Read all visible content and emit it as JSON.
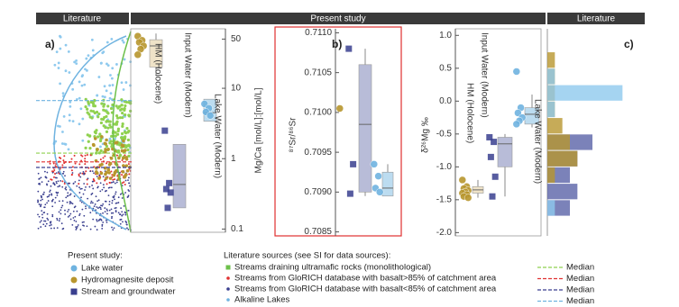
{
  "header": {
    "left": "Literature",
    "middle": "Present study",
    "right": "Literature"
  },
  "chart_data": [
    {
      "type": "box",
      "panel_label": "a)",
      "y_label": "Mg/Ca [mol/L]:[mol/L]",
      "log_y": true,
      "ylim": [
        0.09,
        70
      ],
      "yticks": [
        0.1,
        1,
        10,
        50
      ],
      "series": [
        {
          "name": "HM (Holocene)",
          "color": "#b8962e",
          "box_color": "#efe3c8",
          "marker": "circle",
          "values": [
            55,
            48,
            45,
            40,
            36,
            30
          ],
          "box": {
            "whislo": 15,
            "q1": 20,
            "med": 40,
            "q3": 49,
            "whishi": 60
          }
        },
        {
          "name": "Input Water (Modern)",
          "color": "#3a3f8f",
          "box_color": "#b8bcd8",
          "marker": "square",
          "values": [
            2.5,
            0.45,
            0.37,
            0.33,
            0.2
          ],
          "box": {
            "whislo": 0.2,
            "q1": 0.2,
            "med": 0.43,
            "q3": 1.6,
            "whishi": 1.6
          }
        },
        {
          "name": "Lake Water (Modern)",
          "color": "#6fb3e0",
          "box_color": "#bcdcf0",
          "marker": "circle",
          "values": [
            6,
            5.2,
            4.6,
            4.1
          ],
          "box": {
            "whislo": 3.4,
            "q1": 3.4,
            "med": 4.5,
            "q3": 7,
            "whishi": 7
          }
        }
      ],
      "medians": [
        {
          "color": "#8fd14f",
          "value": 1.2
        },
        {
          "color": "#e03030",
          "value": 0.9
        },
        {
          "color": "#3a3f8f",
          "value": 0.75
        },
        {
          "color": "#6fb3e0",
          "value": 6.7
        }
      ]
    },
    {
      "type": "box",
      "panel_label": "b)",
      "y_label": "⁸⁷Sr/⁸⁶Sr",
      "ylim": [
        0.70845,
        0.71105
      ],
      "yticks": [
        {
          "value": 0.711,
          "label": "0.7110"
        },
        0.7105,
        {
          "value": 0.71,
          "label": "0.7100"
        },
        0.7095,
        {
          "value": 0.709,
          "label": "0.7090"
        },
        0.7085
      ],
      "series": [
        {
          "color": "#b8962e",
          "marker": "circle",
          "values": [
            0.71005
          ]
        },
        {
          "color": "#3a3f8f",
          "box_color": "#b8bcd8",
          "marker": "square",
          "values": [
            0.7108,
            0.70935,
            0.70898
          ],
          "box": {
            "whislo": 0.70895,
            "q1": 0.709,
            "med": 0.70985,
            "q3": 0.7106,
            "whishi": 0.7108
          }
        },
        {
          "color": "#6fb3e0",
          "box_color": "#bcdcf0",
          "marker": "circle",
          "values": [
            0.70935,
            0.7092,
            0.70905,
            0.709
          ],
          "box": {
            "whislo": 0.70895,
            "q1": 0.70895,
            "med": 0.70905,
            "q3": 0.70925,
            "whishi": 0.70935
          }
        }
      ]
    },
    {
      "type": "box",
      "panel_label": "c)",
      "y_label": "δ²⁶Mg ‰",
      "ylim": [
        -2.05,
        1.1
      ],
      "yticks": [
        {
          "value": 1,
          "label": "1.0"
        },
        0.5,
        {
          "value": 0,
          "label": "0.0"
        },
        -0.5,
        {
          "value": -1,
          "label": "-1.0"
        },
        -1.5,
        {
          "value": -2,
          "label": "-2.0"
        }
      ],
      "series": [
        {
          "name": "HM (Holocene)",
          "color": "#b8962e",
          "box_color": "#efe3c8",
          "marker": "circle",
          "values": [
            -1.2,
            -1.3,
            -1.33,
            -1.36,
            -1.38,
            -1.4,
            -1.42,
            -1.45,
            -1.47
          ],
          "box": {
            "whislo": -1.47,
            "q1": -1.4,
            "med": -1.35,
            "q3": -1.3,
            "whishi": -1.2
          }
        },
        {
          "name": "Input Water (Modern)",
          "color": "#3a3f8f",
          "box_color": "#b8bcd8",
          "marker": "square",
          "values": [
            -0.55,
            -0.62,
            -0.85,
            -1.15,
            -1.45
          ],
          "box": {
            "whislo": -1.45,
            "q1": -1.0,
            "med": -0.65,
            "q3": -0.55,
            "whishi": -0.5
          }
        },
        {
          "name": "Lake Water (Modern)",
          "color": "#6fb3e0",
          "box_color": "#bcdcf0",
          "marker": "circle",
          "values": [
            0.45,
            -0.1,
            -0.18,
            -0.25,
            -0.3,
            -0.35
          ],
          "box": {
            "whislo": -0.4,
            "q1": -0.35,
            "med": -0.2,
            "q3": -0.1,
            "whishi": 0.1
          }
        }
      ]
    },
    {
      "type": "histogram",
      "orientation": "horizontal",
      "ylim": [
        -2.05,
        1.1
      ],
      "xlim": [
        0,
        12
      ],
      "bins": [
        -1.75,
        -1.5,
        -1.25,
        -1,
        -0.75,
        -0.5,
        -0.25,
        0,
        0.25,
        0.5,
        0.75
      ],
      "series": [
        {
          "color": "#5a63a8",
          "values": [
            3,
            4,
            3,
            4,
            6,
            0,
            0,
            0,
            0,
            0
          ]
        },
        {
          "color": "#b8962e",
          "values": [
            0,
            0,
            1,
            4,
            3,
            2,
            1,
            1,
            1,
            1
          ]
        },
        {
          "color": "#8ec9ee",
          "values": [
            1,
            0,
            0,
            0,
            0,
            0,
            1,
            10,
            1,
            0
          ]
        }
      ]
    }
  ],
  "legend": {
    "present_title": "Present study:",
    "present_items": [
      {
        "label": "Lake water",
        "color": "#6fb3e0",
        "marker": "circle"
      },
      {
        "label": "Hydromagnesite deposit",
        "color": "#b8962e",
        "marker": "circle"
      },
      {
        "label": "Stream and groundwater",
        "color": "#3a3f8f",
        "marker": "square"
      }
    ],
    "literature_title": "Literature sources (see SI for data sources):",
    "literature_items": [
      {
        "label": "Streams draining ultramafic rocks (monolithological)",
        "color": "#6cc04a",
        "marker": "square"
      },
      {
        "label": "Streams from GloRICH database with basalt>85% of catchment area",
        "color": "#e03030",
        "marker": "dot"
      },
      {
        "label": "Streams from GloRICH database with basalt<85% of catchment area",
        "color": "#3a3f8f",
        "marker": "dot"
      },
      {
        "label": "Alkaline Lakes",
        "color": "#6fb3e0",
        "marker": "dot"
      }
    ],
    "median_items": [
      {
        "label": "Median",
        "color": "#8fd14f"
      },
      {
        "label": "Median",
        "color": "#e03030"
      },
      {
        "label": "Median",
        "color": "#3a3f8f"
      },
      {
        "label": "Median",
        "color": "#6fb3e0"
      }
    ]
  }
}
